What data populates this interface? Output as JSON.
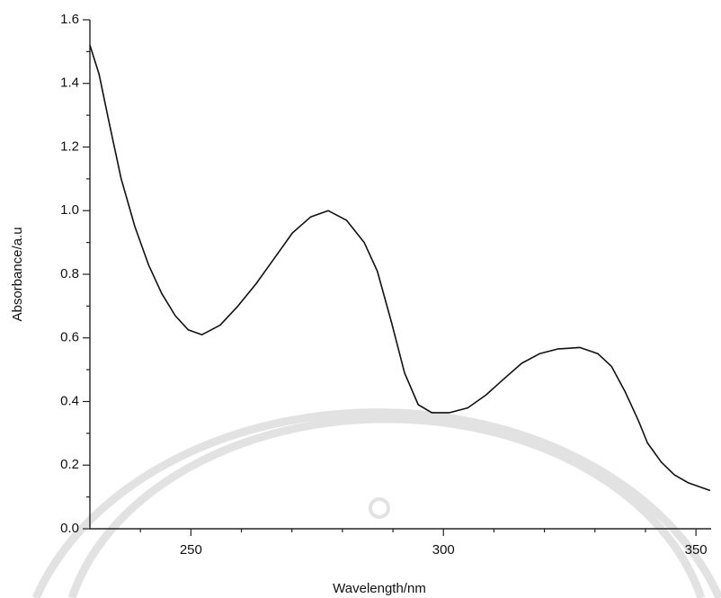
{
  "chart_data": {
    "type": "line",
    "x_label": "Wavelength/nm",
    "y_label": "Absorbance/a.u",
    "xlim": [
      230,
      353
    ],
    "ylim": [
      0,
      1.6
    ],
    "xticks": [
      250,
      300,
      350
    ],
    "xminorticks": [
      240,
      260,
      270,
      280,
      290,
      310,
      320,
      330,
      340
    ],
    "yticks": [
      {
        "value": 0,
        "label": "0.0"
      },
      {
        "value": 0.2,
        "label": "0.2"
      },
      {
        "value": 0.4,
        "label": "0.4"
      },
      {
        "value": 0.6,
        "label": "0.6"
      },
      {
        "value": 0.8,
        "label": "0.8"
      },
      {
        "value": 1.0,
        "label": "1.0"
      },
      {
        "value": 1.2,
        "label": "1.2"
      },
      {
        "value": 1.4,
        "label": "1.4"
      },
      {
        "value": 1.6,
        "label": "1.6"
      }
    ],
    "yminorticks": [
      0.1,
      0.3,
      0.5,
      0.7,
      0.9,
      1.1,
      1.3,
      1.5
    ],
    "x": [
      230,
      231.8,
      233.9,
      236.2,
      238.9,
      241.6,
      244.2,
      246.9,
      249.5,
      252.2,
      255.8,
      259.3,
      262.9,
      266.5,
      270.1,
      273.7,
      277.2,
      280.8,
      284.3,
      286.9,
      289.7,
      292.3,
      295.0,
      297.7,
      301.2,
      304.8,
      308.4,
      311.9,
      315.5,
      319.0,
      322.6,
      327.0,
      330.6,
      333.3,
      336.0,
      338.6,
      340.4,
      343.1,
      345.7,
      348.4,
      352.8
    ],
    "series": [
      {
        "color": "#111111",
        "values": [
          1.52,
          1.43,
          1.27,
          1.1,
          0.95,
          0.83,
          0.74,
          0.67,
          0.625,
          0.61,
          0.64,
          0.7,
          0.77,
          0.85,
          0.93,
          0.98,
          1.0,
          0.97,
          0.9,
          0.81,
          0.65,
          0.49,
          0.39,
          0.365,
          0.365,
          0.38,
          0.42,
          0.47,
          0.52,
          0.55,
          0.565,
          0.57,
          0.55,
          0.51,
          0.43,
          0.34,
          0.27,
          0.21,
          0.17,
          0.145,
          0.12
        ]
      }
    ]
  }
}
